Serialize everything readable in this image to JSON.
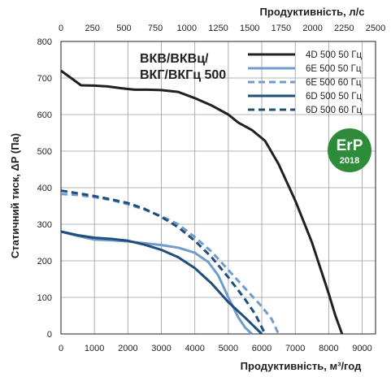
{
  "chart_data": {
    "type": "line",
    "title_lines": [
      "ВКВ/ВКВц/",
      "ВКГ/ВКГц 500"
    ],
    "xlabel": "Продуктивність, м³/год",
    "x2label": "Продуктивність, л/с",
    "ylabel": "Статичний тиск, ΔP (Па)",
    "xlim": [
      0,
      9400
    ],
    "ylim": [
      0,
      800
    ],
    "x2lim": [
      0,
      2500
    ],
    "xticks": [
      0,
      1000,
      2000,
      3000,
      4000,
      5000,
      6000,
      7000,
      8000,
      9000
    ],
    "yticks": [
      0,
      100,
      200,
      300,
      400,
      500,
      600,
      700,
      800
    ],
    "x2ticks": [
      0,
      250,
      500,
      750,
      1000,
      1250,
      1500,
      1750,
      2000,
      2250,
      2500
    ],
    "grid": true,
    "legend_position": "top-right",
    "badge": {
      "line1": "ErP",
      "line2": "2018",
      "color": "#2e8b3a"
    },
    "series": [
      {
        "name": "4D 500 50 Гц",
        "color": "#231f20",
        "dash": "solid",
        "x": [
          0,
          300,
          600,
          1000,
          1400,
          1800,
          2200,
          2600,
          3000,
          3500,
          4000,
          4500,
          5000,
          5300,
          5700,
          6100,
          6500,
          7000,
          7500,
          8000,
          8200,
          8400
        ],
        "y": [
          720,
          700,
          680,
          679,
          677,
          672,
          668,
          668,
          667,
          662,
          645,
          625,
          600,
          578,
          558,
          528,
          465,
          365,
          250,
          110,
          50,
          0
        ]
      },
      {
        "name": "6E 500 50 Гц",
        "color": "#6f9bcf",
        "dash": "solid",
        "x": [
          0,
          500,
          1000,
          1500,
          2000,
          2500,
          3000,
          3500,
          4000,
          4400,
          4700,
          5000,
          5300,
          5500,
          5700
        ],
        "y": [
          280,
          268,
          258,
          256,
          253,
          248,
          243,
          236,
          222,
          197,
          160,
          100,
          45,
          18,
          0
        ]
      },
      {
        "name": "6E 500 60 Гц",
        "color": "#6f9bcf",
        "dash": "dashed",
        "x": [
          0,
          500,
          1000,
          1500,
          2000,
          2500,
          3000,
          3500,
          4000,
          4500,
          5000,
          5500,
          6000,
          6300,
          6500
        ],
        "y": [
          383,
          380,
          374,
          366,
          355,
          340,
          322,
          300,
          265,
          225,
          175,
          125,
          75,
          40,
          0
        ]
      },
      {
        "name": "6D 500 50 Гц",
        "color": "#1f4e79",
        "dash": "solid",
        "x": [
          0,
          500,
          1000,
          1500,
          2000,
          2500,
          3000,
          3500,
          4000,
          4500,
          5000,
          5500,
          5800,
          6000
        ],
        "y": [
          280,
          270,
          263,
          260,
          255,
          244,
          230,
          210,
          180,
          138,
          87,
          45,
          18,
          0
        ]
      },
      {
        "name": "6D 500 60 Гц",
        "color": "#1f4e79",
        "dash": "dashed",
        "x": [
          0,
          500,
          1000,
          1500,
          2000,
          2500,
          3000,
          3500,
          4000,
          4500,
          5000,
          5500,
          5800,
          6100
        ],
        "y": [
          392,
          385,
          377,
          368,
          358,
          342,
          320,
          292,
          255,
          210,
          155,
          95,
          55,
          0
        ]
      }
    ]
  }
}
